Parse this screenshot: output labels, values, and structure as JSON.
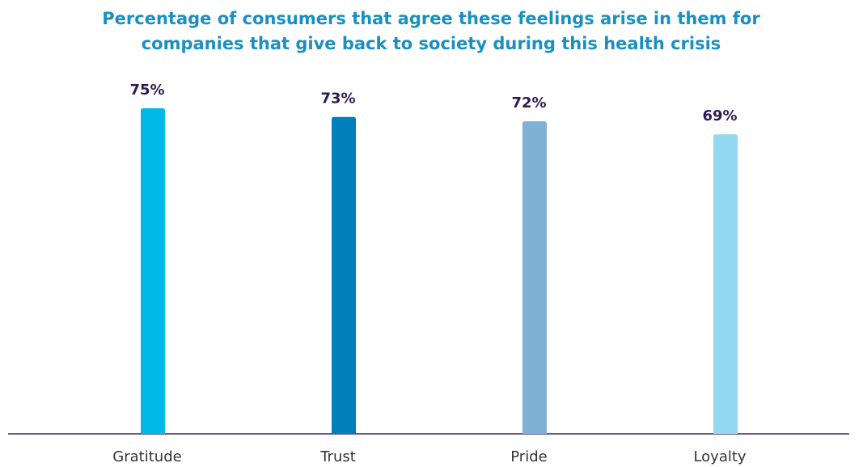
{
  "chart_data": {
    "type": "bar",
    "title": [
      "Percentage of consumers that agree these feelings arise in them for",
      "companies that give back to society during this health crisis"
    ],
    "categories": [
      "Gratitude",
      "Trust",
      "Pride",
      "Loyalty"
    ],
    "values": [
      75,
      73,
      72,
      69
    ],
    "value_labels": [
      "75%",
      "73%",
      "72%",
      "69%"
    ],
    "colors": [
      "#00b9e7",
      "#0080ba",
      "#7fb1d6",
      "#92d8f0"
    ]
  }
}
